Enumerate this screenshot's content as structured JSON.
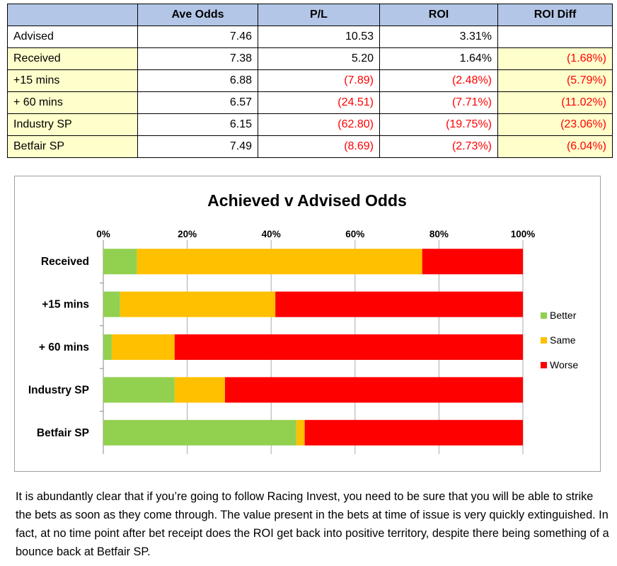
{
  "table": {
    "headers": [
      "",
      "Ave Odds",
      "P/L",
      "ROI",
      "ROI Diff"
    ],
    "rows": [
      {
        "label": "Advised",
        "ave_odds": "7.46",
        "pl": "10.53",
        "roi": "3.31%",
        "roi_diff": ""
      },
      {
        "label": "Received",
        "ave_odds": "7.38",
        "pl": "5.20",
        "roi": "1.64%",
        "roi_diff": "(1.68%)"
      },
      {
        "label": "+15 mins",
        "ave_odds": "6.88",
        "pl": "(7.89)",
        "roi": "(2.48%)",
        "roi_diff": "(5.79%)"
      },
      {
        "label": "+ 60 mins",
        "ave_odds": "6.57",
        "pl": "(24.51)",
        "roi": "(7.71%)",
        "roi_diff": "(11.02%)"
      },
      {
        "label": "Industry SP",
        "ave_odds": "6.15",
        "pl": "(62.80)",
        "roi": "(19.75%)",
        "roi_diff": "(23.06%)"
      },
      {
        "label": "Betfair SP",
        "ave_odds": "7.49",
        "pl": "(8.69)",
        "roi": "(2.73%)",
        "roi_diff": "(6.04%)"
      }
    ],
    "highlight_color": "#ffffcc",
    "header_color": "#b4c6e7",
    "negative_color": "#ff0000"
  },
  "chart_data": {
    "type": "bar",
    "orientation": "horizontal",
    "stacked": "percent",
    "title": "Achieved v Advised Odds",
    "categories": [
      "Received",
      "+15 mins",
      "+ 60 mins",
      "Industry SP",
      "Betfair SP"
    ],
    "series": [
      {
        "name": "Better",
        "color": "#92d050",
        "values": [
          8,
          4,
          2,
          17,
          46
        ]
      },
      {
        "name": "Same",
        "color": "#ffc000",
        "values": [
          68,
          37,
          15,
          12,
          2
        ]
      },
      {
        "name": "Worse",
        "color": "#ff0000",
        "values": [
          24,
          59,
          83,
          71,
          52
        ]
      }
    ],
    "xlim": [
      0,
      100
    ],
    "x_ticks": [
      "0%",
      "20%",
      "40%",
      "60%",
      "80%",
      "100%"
    ],
    "x_axis_position": "top",
    "grid": true,
    "legend": "right"
  },
  "paragraph": "It is abundantly clear that if you’re going to follow Racing Invest, you need to be sure that you will be able to strike the bets as soon as they come through.  The value present in the bets at time of issue is very quickly extinguished.  In fact, at no time point after bet receipt does the ROI get back into positive territory, despite there being something of a bounce back at Betfair SP."
}
